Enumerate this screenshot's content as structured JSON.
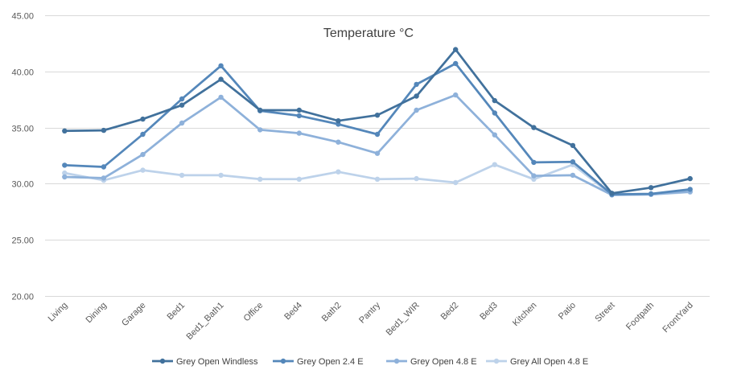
{
  "chart_data": {
    "type": "line",
    "title": "Temperature °C",
    "xlabel": "",
    "ylabel": "",
    "ylim": [
      20,
      45
    ],
    "yticks": [
      "20.00",
      "25.00",
      "30.00",
      "35.00",
      "40.00",
      "45.00"
    ],
    "grid": true,
    "legend_position": "bottom",
    "categories": [
      "Living",
      "Dining",
      "Garage",
      "Bed1",
      "Bed1_Bath1",
      "Office",
      "Bed4",
      "Bath2",
      "Pantry",
      "Bed1_WIR",
      "Bed2",
      "Bed3",
      "Kitchen",
      "Patio",
      "Street",
      "Footpath",
      "FrontYard"
    ],
    "series": [
      {
        "name": "Grey Open Windless",
        "color": "#41719c",
        "values": [
          34.7,
          34.75,
          35.75,
          37.0,
          39.3,
          36.55,
          36.55,
          35.6,
          36.1,
          37.8,
          41.95,
          37.4,
          35.0,
          33.4,
          29.15,
          29.65,
          30.45
        ]
      },
      {
        "name": "Grey Open 2.4 E",
        "color": "#5487ba",
        "values": [
          31.65,
          31.5,
          34.4,
          37.55,
          40.5,
          36.5,
          36.05,
          35.3,
          34.4,
          38.85,
          40.7,
          36.3,
          31.9,
          31.95,
          29.05,
          29.1,
          29.5
        ]
      },
      {
        "name": "Grey Open 4.8 E",
        "color": "#8eb1da",
        "values": [
          30.6,
          30.5,
          32.6,
          35.4,
          37.7,
          34.8,
          34.5,
          33.7,
          32.7,
          36.55,
          37.9,
          34.35,
          30.7,
          30.75,
          29.0,
          29.05,
          29.3
        ]
      },
      {
        "name": "Grey All Open 4.8 E",
        "color": "#bdd2ea",
        "values": [
          30.95,
          30.3,
          31.2,
          30.75,
          30.75,
          30.4,
          30.4,
          31.05,
          30.4,
          30.45,
          30.1,
          31.7,
          30.4,
          31.7,
          29.0,
          29.05,
          29.25
        ]
      }
    ]
  }
}
